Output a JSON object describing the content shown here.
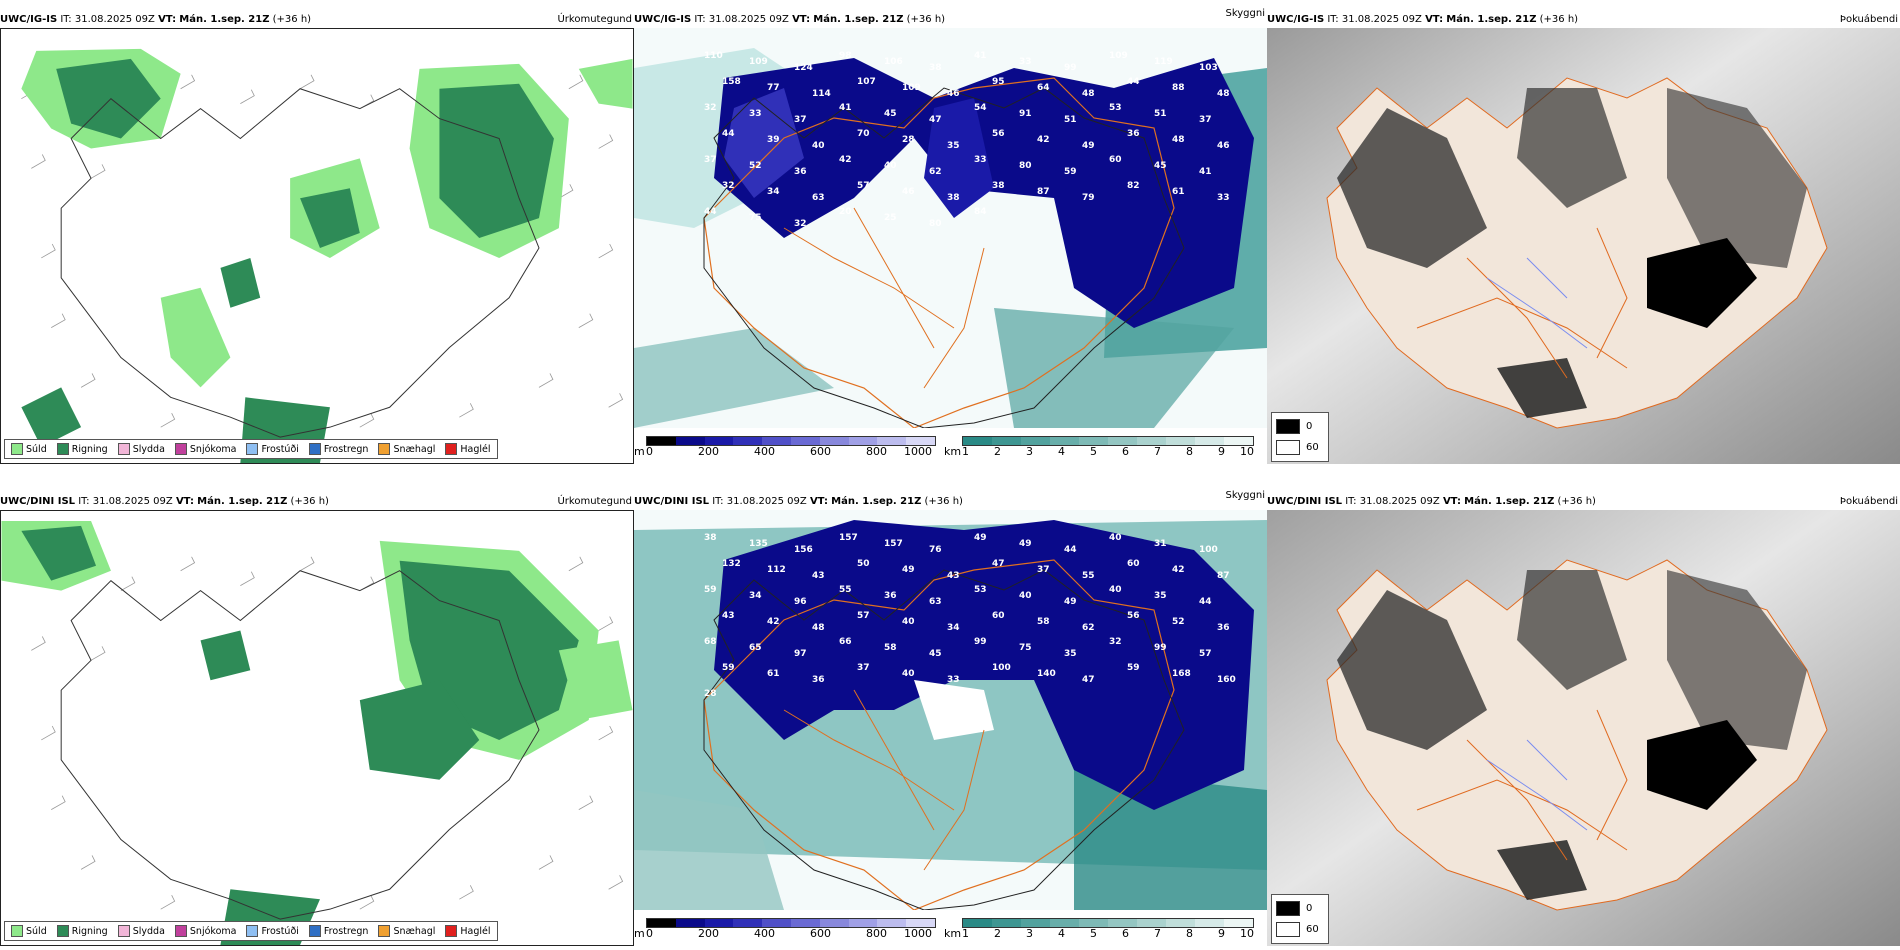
{
  "rows": [
    {
      "model": "UWC/IG-IS",
      "it_label": "IT:",
      "it_value": "31.08.2025 09Z",
      "vt_label": "VT:",
      "vt_value": "Mán. 1.sep. 21Z",
      "lead": "(+36 h)",
      "titles": {
        "precip": "Úrkomutegund",
        "visibility": "Skyggni",
        "fog": "Þokuábendi"
      },
      "visibility_labels": [
        "110",
        "109",
        "124",
        "98",
        "106",
        "38",
        "41",
        "33",
        "99",
        "109",
        "119",
        "103",
        "158",
        "77",
        "114",
        "107",
        "109",
        "46",
        "95",
        "64",
        "48",
        "44",
        "88",
        "48",
        "32",
        "33",
        "37",
        "41",
        "45",
        "47",
        "54",
        "91",
        "51",
        "53",
        "51",
        "37",
        "44",
        "39",
        "40",
        "70",
        "28",
        "35",
        "56",
        "42",
        "49",
        "36",
        "48",
        "46",
        "37",
        "52",
        "36",
        "42",
        "40",
        "62",
        "33",
        "80",
        "59",
        "60",
        "45",
        "41",
        "32",
        "34",
        "63",
        "57",
        "46",
        "38",
        "38",
        "87",
        "79",
        "82",
        "61",
        "33",
        "44",
        "75",
        "32",
        "20",
        "25",
        "80",
        "84"
      ],
      "cloud_legend": [
        "0",
        "60"
      ]
    },
    {
      "model": "UWC/DINI ISL",
      "it_label": "IT:",
      "it_value": "31.08.2025 09Z",
      "vt_label": "VT:",
      "vt_value": "Mán. 1.sep. 21Z",
      "lead": "(+36 h)",
      "titles": {
        "precip": "Úrkomutegund",
        "visibility": "Skyggni",
        "fog": "Þokuábendi"
      },
      "visibility_labels": [
        "38",
        "135",
        "156",
        "157",
        "157",
        "76",
        "49",
        "49",
        "44",
        "40",
        "31",
        "100",
        "132",
        "112",
        "43",
        "50",
        "49",
        "43",
        "47",
        "37",
        "55",
        "60",
        "42",
        "87",
        "59",
        "34",
        "96",
        "55",
        "36",
        "63",
        "53",
        "40",
        "49",
        "40",
        "35",
        "44",
        "43",
        "42",
        "48",
        "57",
        "40",
        "34",
        "60",
        "58",
        "62",
        "56",
        "52",
        "36",
        "68",
        "65",
        "97",
        "66",
        "58",
        "45",
        "99",
        "75",
        "35",
        "32",
        "99",
        "57",
        "59",
        "61",
        "36",
        "37",
        "40",
        "33",
        "100",
        "140",
        "47",
        "59",
        "168",
        "160",
        "28"
      ],
      "cloud_legend": [
        "0",
        "60"
      ]
    }
  ],
  "precip_legend": [
    {
      "label": "Súld",
      "color": "#8ee88a"
    },
    {
      "label": "Rigning",
      "color": "#2e8b57"
    },
    {
      "label": "Slydda",
      "color": "#f2b6d8"
    },
    {
      "label": "Snjókoma",
      "color": "#c0409c"
    },
    {
      "label": "Frostúði",
      "color": "#8fbff2"
    },
    {
      "label": "Frostregn",
      "color": "#2f6fc4"
    },
    {
      "label": "Snæhagl",
      "color": "#f0a030"
    },
    {
      "label": "Haglél",
      "color": "#e0201e"
    }
  ],
  "colorbar_m": {
    "unit": "m",
    "ticks": [
      "0",
      "200",
      "400",
      "600",
      "800",
      "1000"
    ],
    "colors": [
      "#000000",
      "#0a0a8a",
      "#1a1aa8",
      "#3030b8",
      "#5050c8",
      "#6a6ad4",
      "#8888dc",
      "#a0a0e6",
      "#bcbcee",
      "#d8d8f6"
    ]
  },
  "colorbar_km": {
    "unit": "km",
    "ticks": [
      "1",
      "2",
      "3",
      "4",
      "5",
      "6",
      "7",
      "8",
      "9",
      "10"
    ],
    "colors": [
      "#2a8a86",
      "#3e9692",
      "#52a29e",
      "#68aeaa",
      "#7ebab6",
      "#94c6c2",
      "#aad2ce",
      "#c0deda",
      "#d6eae8",
      "#ecf6f4"
    ]
  },
  "colors": {
    "drizzle": "#8ee88a",
    "rain": "#2e8b57",
    "vis_low": "#0a0a8a",
    "vis_teal": "#3a9a96",
    "land_fog": "#f2e6da",
    "road": "#e06a20"
  }
}
